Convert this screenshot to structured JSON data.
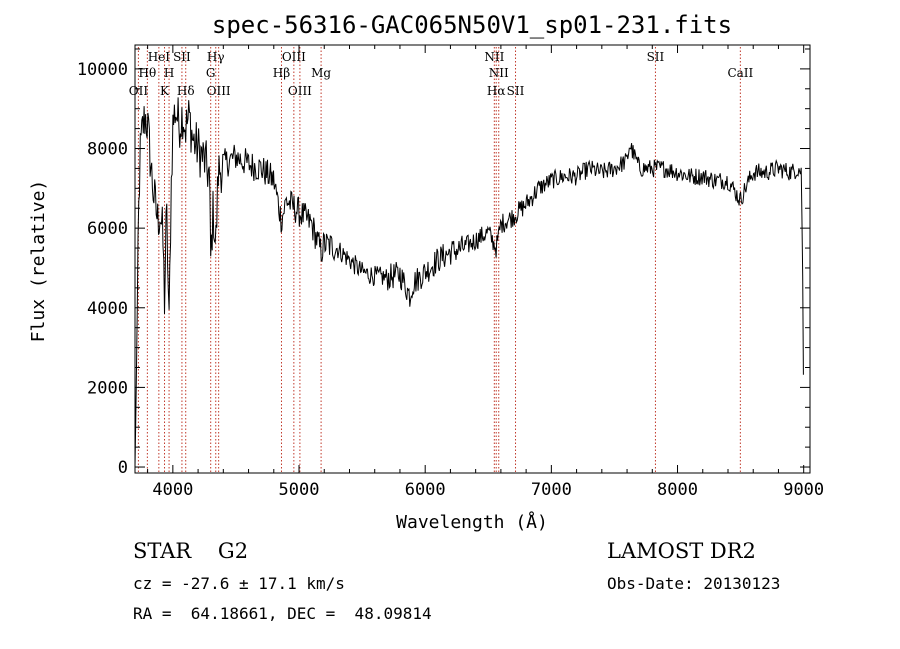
{
  "chart_data": {
    "type": "line",
    "title": "spec-56316-GAC065N50V1_sp01-231.fits",
    "xlabel": "Wavelength (Å)",
    "ylabel": "Flux (relative)",
    "xlim": [
      3700,
      9050
    ],
    "ylim": [
      -150,
      10600
    ],
    "x_ticks": [
      4000,
      5000,
      6000,
      7000,
      8000,
      9000
    ],
    "y_ticks": [
      0,
      2000,
      4000,
      6000,
      8000,
      10000
    ],
    "grid": false,
    "lines": [
      {
        "wl": 3727,
        "label": "OII",
        "row": 3
      },
      {
        "wl": 3798,
        "label": "Hθ",
        "row": 2
      },
      {
        "wl": 3889,
        "label": "HeI",
        "row": 1
      },
      {
        "wl": 3934,
        "label": "K",
        "row": 3
      },
      {
        "wl": 3970,
        "label": "H",
        "row": 2
      },
      {
        "wl": 4072,
        "label": "SII",
        "row": 1
      },
      {
        "wl": 4102,
        "label": "Hδ",
        "row": 3
      },
      {
        "wl": 4300,
        "label": "G",
        "row": 2
      },
      {
        "wl": 4340,
        "label": "Hγ",
        "row": 1
      },
      {
        "wl": 4363,
        "label": "OIII",
        "row": 3
      },
      {
        "wl": 4861,
        "label": "Hβ",
        "row": 2
      },
      {
        "wl": 4959,
        "label": "OIII",
        "row": 1
      },
      {
        "wl": 5007,
        "label": "OIII",
        "row": 3
      },
      {
        "wl": 5175,
        "label": "Mg",
        "row": 2
      },
      {
        "wl": 6548,
        "label": "NII",
        "row": 1
      },
      {
        "wl": 6563,
        "label": "Hα",
        "row": 3
      },
      {
        "wl": 6583,
        "label": "NII",
        "row": 2
      },
      {
        "wl": 6716,
        "label": "SII",
        "row": 3
      },
      {
        "wl": 7825,
        "label": "SII",
        "row": 1
      },
      {
        "wl": 8498,
        "label": "CaII",
        "row": 2
      }
    ],
    "continuum": [
      [
        3700,
        0
      ],
      [
        3712,
        2500
      ],
      [
        3725,
        5800
      ],
      [
        3740,
        7800
      ],
      [
        3760,
        8500
      ],
      [
        3780,
        8800
      ],
      [
        3800,
        8600
      ],
      [
        3830,
        7400
      ],
      [
        3850,
        6800
      ],
      [
        3880,
        6200
      ],
      [
        3900,
        6400
      ],
      [
        3920,
        5800
      ],
      [
        3934,
        4200
      ],
      [
        3950,
        6500
      ],
      [
        3970,
        3500
      ],
      [
        3985,
        6800
      ],
      [
        4000,
        8600
      ],
      [
        4020,
        9000
      ],
      [
        4050,
        8600
      ],
      [
        4080,
        8900
      ],
      [
        4100,
        8500
      ],
      [
        4130,
        8800
      ],
      [
        4160,
        8200
      ],
      [
        4200,
        8000
      ],
      [
        4250,
        7700
      ],
      [
        4290,
        7300
      ],
      [
        4300,
        5200
      ],
      [
        4320,
        6500
      ],
      [
        4340,
        5500
      ],
      [
        4360,
        7400
      ],
      [
        4400,
        7600
      ],
      [
        4500,
        7800
      ],
      [
        4600,
        7600
      ],
      [
        4700,
        7500
      ],
      [
        4800,
        7200
      ],
      [
        4861,
        6200
      ],
      [
        4900,
        6700
      ],
      [
        5000,
        6400
      ],
      [
        5100,
        6100
      ],
      [
        5175,
        5400
      ],
      [
        5200,
        5600
      ],
      [
        5300,
        5500
      ],
      [
        5400,
        5200
      ],
      [
        5500,
        4900
      ],
      [
        5600,
        4800
      ],
      [
        5700,
        4750
      ],
      [
        5800,
        4850
      ],
      [
        5880,
        4300
      ],
      [
        5900,
        4600
      ],
      [
        6000,
        4900
      ],
      [
        6100,
        5200
      ],
      [
        6200,
        5400
      ],
      [
        6300,
        5500
      ],
      [
        6400,
        5700
      ],
      [
        6500,
        5900
      ],
      [
        6563,
        5500
      ],
      [
        6600,
        6100
      ],
      [
        6700,
        6300
      ],
      [
        6800,
        6600
      ],
      [
        6900,
        7000
      ],
      [
        7000,
        7200
      ],
      [
        7100,
        7300
      ],
      [
        7200,
        7300
      ],
      [
        7300,
        7500
      ],
      [
        7400,
        7400
      ],
      [
        7500,
        7500
      ],
      [
        7600,
        7700
      ],
      [
        7620,
        8100
      ],
      [
        7700,
        7500
      ],
      [
        7800,
        7500
      ],
      [
        7900,
        7500
      ],
      [
        8000,
        7400
      ],
      [
        8100,
        7300
      ],
      [
        8200,
        7300
      ],
      [
        8300,
        7200
      ],
      [
        8400,
        7200
      ],
      [
        8498,
        6700
      ],
      [
        8550,
        7100
      ],
      [
        8600,
        7400
      ],
      [
        8700,
        7400
      ],
      [
        8800,
        7500
      ],
      [
        8900,
        7400
      ],
      [
        8960,
        7500
      ],
      [
        8980,
        7400
      ],
      [
        8990,
        5600
      ],
      [
        9000,
        1500
      ]
    ]
  },
  "info": {
    "class_line": "STAR    G2",
    "cz_line": "cz = -27.6 ± 17.1 km/s",
    "radec_line": "RA =  64.18661, DEC =  48.09814",
    "survey": "LAMOST DR2",
    "obs_date": "Obs-Date: 20130123"
  }
}
